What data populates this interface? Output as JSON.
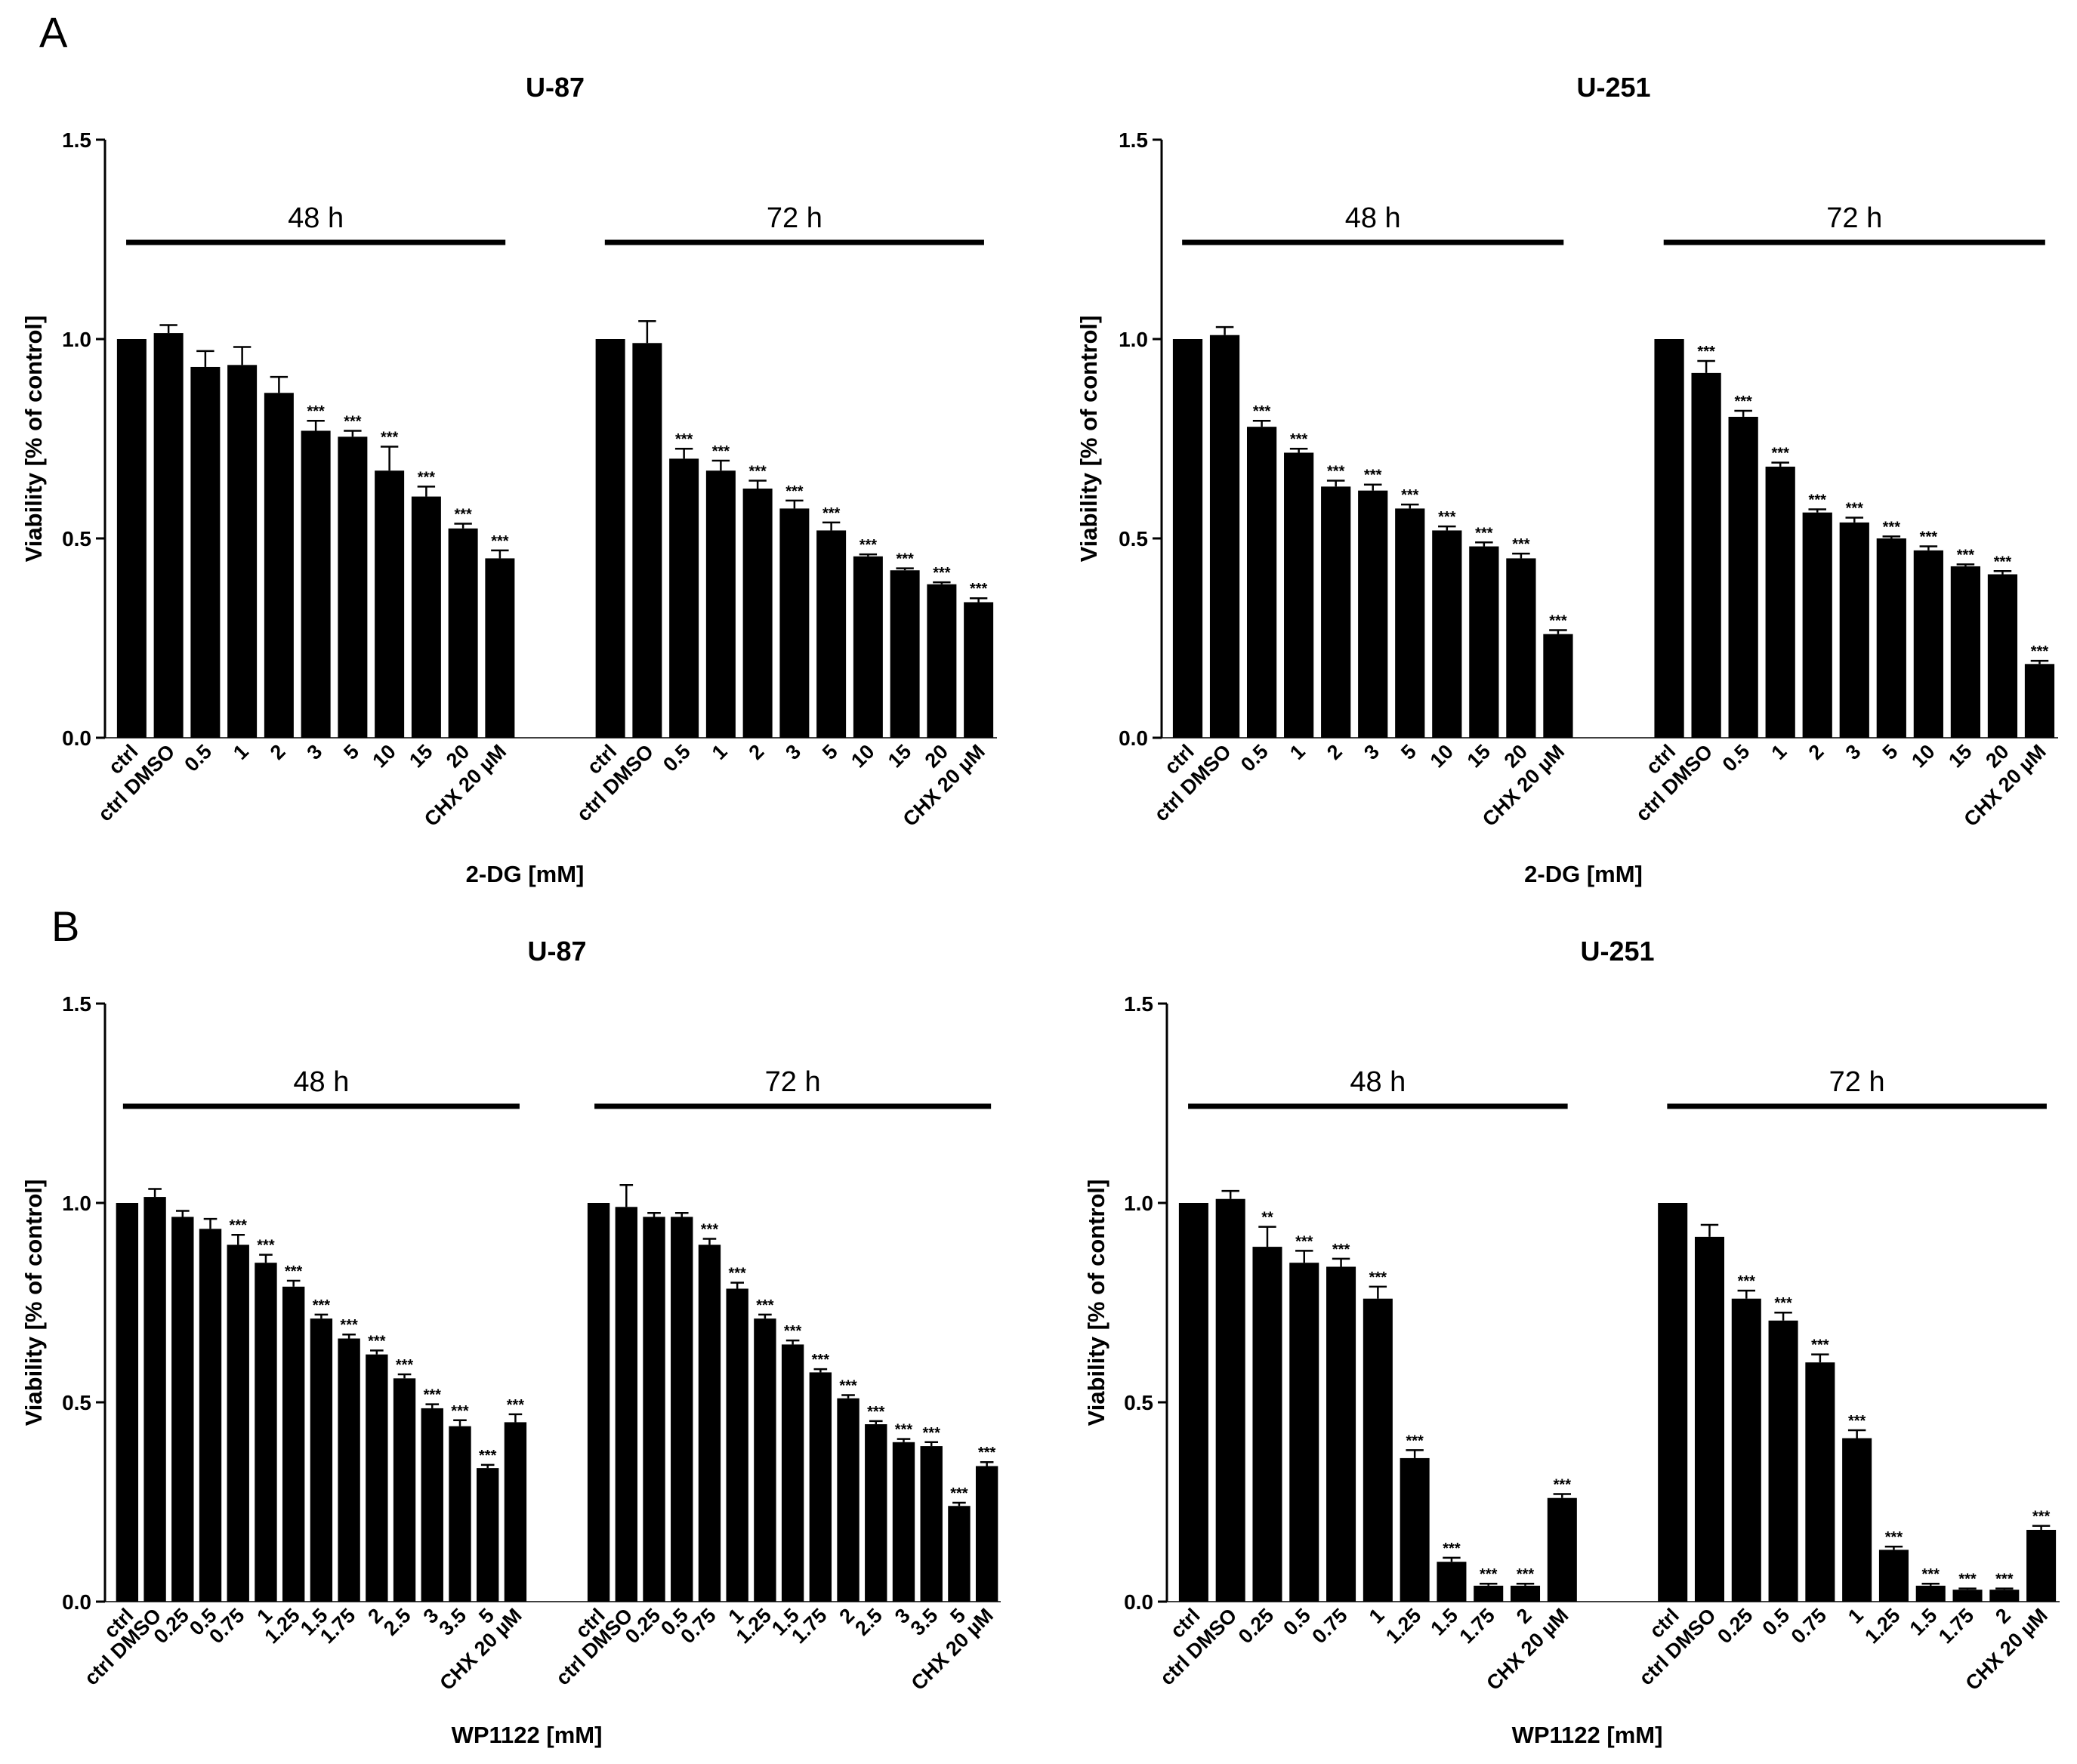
{
  "panel_labels": [
    "A",
    "B"
  ],
  "chart_data": [
    {
      "type": "bar",
      "panel": "A",
      "title": "U-87",
      "xlabel": "2-DG [mM]",
      "ylabel": "Viability [% of control]",
      "ylim": [
        0,
        1.5
      ],
      "yticks": [
        "0.0",
        "0.5",
        "1.0",
        "1.5"
      ],
      "groups": [
        {
          "label": "48 h",
          "categories": [
            "ctrl",
            "ctrl DMSO",
            "0.5",
            "1",
            "2",
            "3",
            "5",
            "10",
            "15",
            "20",
            "CHX 20 µM"
          ],
          "values": [
            1.0,
            1.015,
            0.93,
            0.935,
            0.865,
            0.77,
            0.755,
            0.67,
            0.605,
            0.525,
            0.45
          ],
          "errors": [
            0,
            0.02,
            0.04,
            0.045,
            0.04,
            0.025,
            0.015,
            0.06,
            0.025,
            0.012,
            0.02
          ],
          "significance": [
            "",
            "",
            "",
            "",
            "",
            "***",
            "***",
            "***",
            "***",
            "***",
            "***"
          ]
        },
        {
          "label": "72 h",
          "categories": [
            "ctrl",
            "ctrl DMSO",
            "0.5",
            "1",
            "2",
            "3",
            "5",
            "10",
            "15",
            "20",
            "CHX 20 µM"
          ],
          "values": [
            1.0,
            0.99,
            0.7,
            0.67,
            0.625,
            0.575,
            0.52,
            0.455,
            0.42,
            0.385,
            0.34
          ],
          "errors": [
            0,
            0.055,
            0.025,
            0.025,
            0.02,
            0.02,
            0.02,
            0.005,
            0.005,
            0.005,
            0.01
          ],
          "significance": [
            "",
            "",
            "***",
            "***",
            "***",
            "***",
            "***",
            "***",
            "***",
            "***",
            "***"
          ]
        }
      ]
    },
    {
      "type": "bar",
      "panel": "A",
      "title": "U-251",
      "xlabel": "2-DG [mM]",
      "ylabel": "Viability [% of control]",
      "ylim": [
        0,
        1.5
      ],
      "yticks": [
        "0.0",
        "0.5",
        "1.0",
        "1.5"
      ],
      "groups": [
        {
          "label": "48 h",
          "categories": [
            "ctrl",
            "ctrl DMSO",
            "0.5",
            "1",
            "2",
            "3",
            "5",
            "10",
            "15",
            "20",
            "CHX 20 µM"
          ],
          "values": [
            1.0,
            1.01,
            0.78,
            0.715,
            0.63,
            0.62,
            0.575,
            0.52,
            0.48,
            0.45,
            0.26
          ],
          "errors": [
            0,
            0.02,
            0.015,
            0.01,
            0.015,
            0.015,
            0.01,
            0.01,
            0.01,
            0.012,
            0.01
          ],
          "significance": [
            "",
            "",
            "***",
            "***",
            "***",
            "***",
            "***",
            "***",
            "***",
            "***",
            "***"
          ]
        },
        {
          "label": "72 h",
          "categories": [
            "ctrl",
            "ctrl DMSO",
            "0.5",
            "1",
            "2",
            "3",
            "5",
            "10",
            "15",
            "20",
            "CHX 20 µM"
          ],
          "values": [
            1.0,
            0.915,
            0.805,
            0.68,
            0.565,
            0.54,
            0.5,
            0.47,
            0.43,
            0.41,
            0.185
          ],
          "errors": [
            0,
            0.03,
            0.015,
            0.01,
            0.008,
            0.012,
            0.005,
            0.01,
            0.005,
            0.008,
            0.008
          ],
          "significance": [
            "",
            "***",
            "***",
            "***",
            "***",
            "***",
            "***",
            "***",
            "***",
            "***",
            "***"
          ]
        }
      ]
    },
    {
      "type": "bar",
      "panel": "B",
      "title": "U-87",
      "xlabel": "WP1122 [mM]",
      "ylabel": "Viability [% of control]",
      "ylim": [
        0,
        1.5
      ],
      "yticks": [
        "0.0",
        "0.5",
        "1.0",
        "1.5"
      ],
      "groups": [
        {
          "label": "48 h",
          "categories": [
            "ctrl",
            "ctrl DMSO",
            "0.25",
            "0.5",
            "0.75",
            "1",
            "1.25",
            "1.5",
            "1.75",
            "2",
            "2.5",
            "3",
            "3.5",
            "5",
            "CHX 20 µM"
          ],
          "values": [
            1.0,
            1.015,
            0.965,
            0.935,
            0.895,
            0.85,
            0.79,
            0.71,
            0.66,
            0.62,
            0.56,
            0.485,
            0.44,
            0.335,
            0.45
          ],
          "errors": [
            0,
            0.02,
            0.015,
            0.025,
            0.025,
            0.02,
            0.015,
            0.01,
            0.01,
            0.01,
            0.01,
            0.01,
            0.015,
            0.008,
            0.02
          ],
          "significance": [
            "",
            "",
            "",
            "",
            "***",
            "***",
            "***",
            "***",
            "***",
            "***",
            "***",
            "***",
            "***",
            "***",
            "***"
          ]
        },
        {
          "label": "72 h",
          "categories": [
            "ctrl",
            "ctrl DMSO",
            "0.25",
            "0.5",
            "0.75",
            "1",
            "1.25",
            "1.5",
            "1.75",
            "2",
            "2.5",
            "3",
            "3.5",
            "5",
            "CHX 20 µM"
          ],
          "values": [
            1.0,
            0.99,
            0.965,
            0.965,
            0.895,
            0.785,
            0.71,
            0.645,
            0.575,
            0.51,
            0.445,
            0.4,
            0.39,
            0.24,
            0.34
          ],
          "errors": [
            0,
            0.055,
            0.01,
            0.01,
            0.015,
            0.015,
            0.01,
            0.01,
            0.008,
            0.008,
            0.008,
            0.008,
            0.01,
            0.008,
            0.01
          ],
          "significance": [
            "",
            "",
            "",
            "",
            "***",
            "***",
            "***",
            "***",
            "***",
            "***",
            "***",
            "***",
            "***",
            "***",
            "***"
          ]
        }
      ]
    },
    {
      "type": "bar",
      "panel": "B",
      "title": "U-251",
      "xlabel": "WP1122 [mM]",
      "ylabel": "Viability [% of control]",
      "ylim": [
        0,
        1.5
      ],
      "yticks": [
        "0.0",
        "0.5",
        "1.0",
        "1.5"
      ],
      "groups": [
        {
          "label": "48 h",
          "categories": [
            "ctrl",
            "ctrl DMSO",
            "0.25",
            "0.5",
            "0.75",
            "1",
            "1.25",
            "1.5",
            "1.75",
            "2",
            "CHX 20 µM"
          ],
          "values": [
            1.0,
            1.01,
            0.89,
            0.85,
            0.84,
            0.76,
            0.36,
            0.1,
            0.04,
            0.04,
            0.26
          ],
          "errors": [
            0,
            0.02,
            0.05,
            0.03,
            0.02,
            0.03,
            0.02,
            0.01,
            0.005,
            0.005,
            0.01
          ],
          "significance": [
            "",
            "",
            "**",
            "***",
            "***",
            "***",
            "***",
            "***",
            "***",
            "***",
            "***"
          ]
        },
        {
          "label": "72 h",
          "categories": [
            "ctrl",
            "ctrl DMSO",
            "0.25",
            "0.5",
            "0.75",
            "1",
            "1.25",
            "1.5",
            "1.75",
            "2",
            "CHX 20 µM"
          ],
          "values": [
            1.0,
            0.915,
            0.76,
            0.705,
            0.6,
            0.41,
            0.13,
            0.04,
            0.03,
            0.03,
            0.18
          ],
          "errors": [
            0,
            0.03,
            0.02,
            0.02,
            0.02,
            0.02,
            0.008,
            0.005,
            0.003,
            0.003,
            0.01
          ],
          "significance": [
            "",
            "",
            "***",
            "***",
            "***",
            "***",
            "***",
            "***",
            "***",
            "***",
            "***"
          ]
        }
      ]
    }
  ]
}
